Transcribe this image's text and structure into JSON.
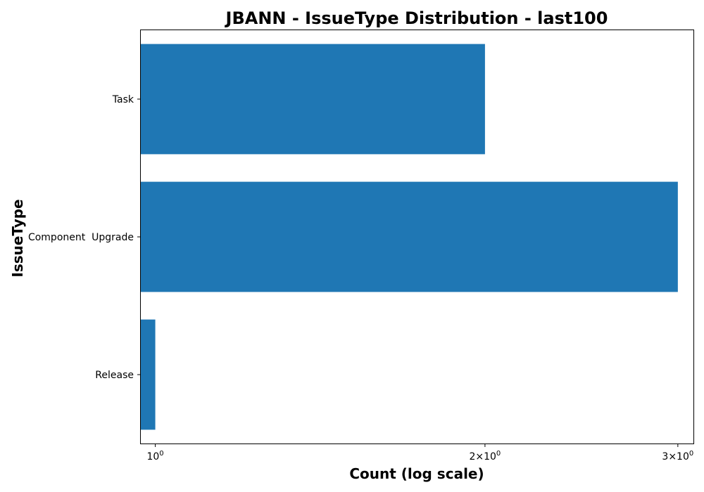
{
  "chart_data": {
    "type": "bar",
    "orientation": "horizontal",
    "title": "JBANN - IssueType Distribution - last100",
    "xlabel": "Count (log scale)",
    "ylabel": "IssueType",
    "x_scale": "log",
    "xlim": [
      0.97,
      3.1
    ],
    "categories": [
      "Task",
      "Component  Upgrade",
      "Release"
    ],
    "values": [
      2,
      3,
      1
    ],
    "x_ticks": [
      {
        "value": 1,
        "base": "10",
        "exp": "0"
      },
      {
        "value": 2,
        "mult": "2",
        "base": "10",
        "exp": "0"
      },
      {
        "value": 3,
        "mult": "3",
        "base": "10",
        "exp": "0"
      }
    ],
    "bar_color": "#1f77b4",
    "grid": false,
    "legend": "none"
  }
}
